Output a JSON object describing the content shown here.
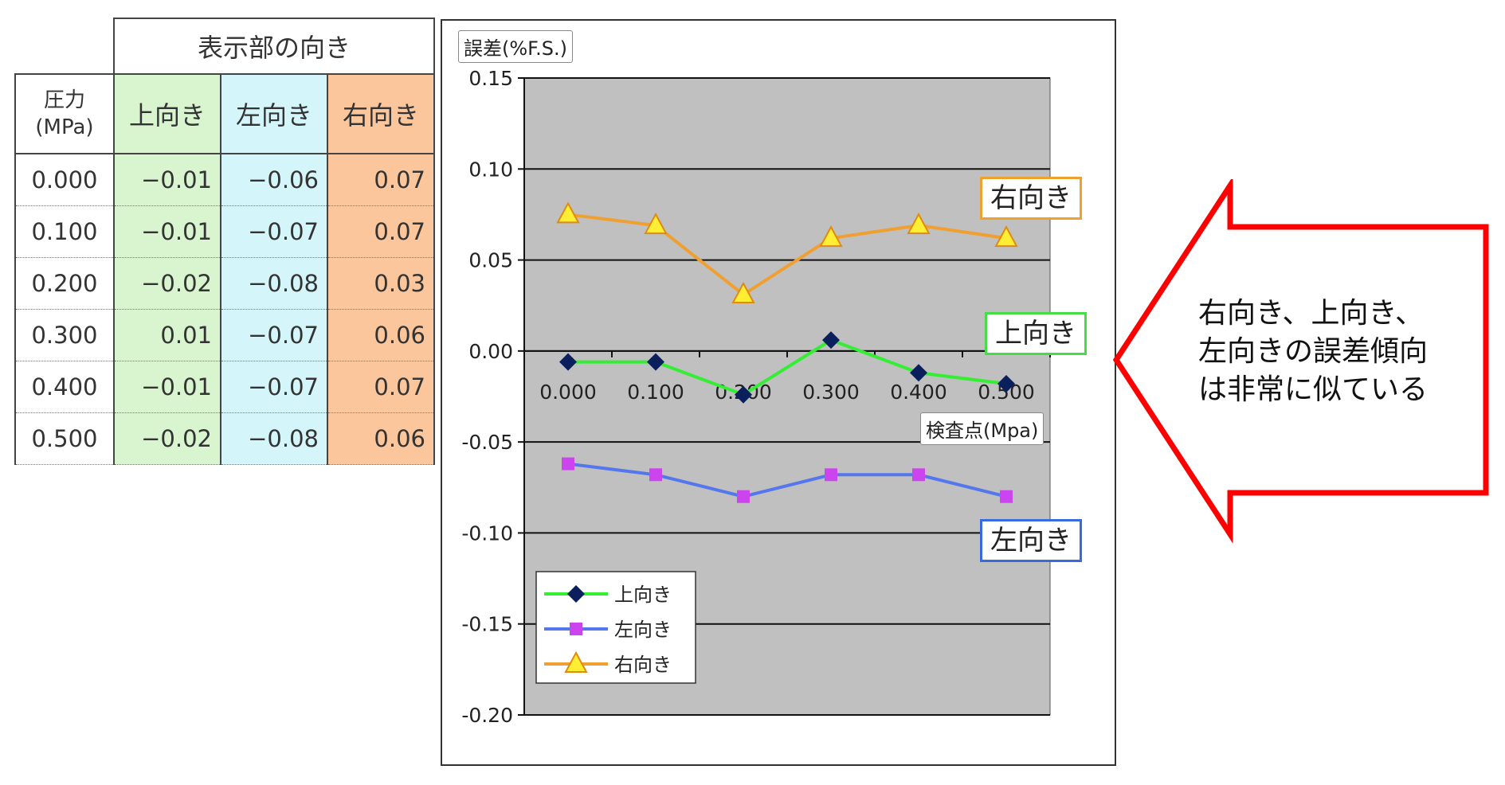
{
  "table": {
    "group_header": "表示部の向き",
    "pressure_header_line1": "圧力",
    "pressure_header_line2": "(MPa)",
    "columns": [
      "上向き",
      "左向き",
      "右向き"
    ],
    "rows": [
      {
        "p": "0.000",
        "up": "−0.01",
        "left": "−0.06",
        "right": "0.07"
      },
      {
        "p": "0.100",
        "up": "−0.01",
        "left": "−0.07",
        "right": "0.07"
      },
      {
        "p": "0.200",
        "up": "−0.02",
        "left": "−0.08",
        "right": "0.03"
      },
      {
        "p": "0.300",
        "up": "0.01",
        "left": "−0.07",
        "right": "0.06"
      },
      {
        "p": "0.400",
        "up": "−0.01",
        "left": "−0.07",
        "right": "0.07"
      },
      {
        "p": "0.500",
        "up": "−0.02",
        "left": "−0.08",
        "right": "0.06"
      }
    ]
  },
  "chart_data": {
    "type": "line",
    "ylabel": "誤差(%F.S.)",
    "xlabel": "検査点(Mpa)",
    "x": [
      "0.000",
      "0.100",
      "0.200",
      "0.300",
      "0.400",
      "0.500"
    ],
    "ylim": [
      -0.2,
      0.15
    ],
    "yticks": [
      "0.15",
      "0.10",
      "0.05",
      "0.00",
      "-0.05",
      "-0.10",
      "-0.15",
      "-0.20"
    ],
    "grid": true,
    "legend_position": "bottom-left",
    "series": [
      {
        "name": "上向き",
        "values": [
          -0.006,
          -0.006,
          -0.024,
          0.006,
          -0.012,
          -0.018
        ],
        "color": "#33ee33",
        "marker": "diamond",
        "marker_color": "#0a1f5c"
      },
      {
        "name": "左向き",
        "values": [
          -0.062,
          -0.068,
          -0.08,
          -0.068,
          -0.068,
          -0.08
        ],
        "color": "#5577ee",
        "marker": "square",
        "marker_color": "#cc44ee"
      },
      {
        "name": "右向き",
        "values": [
          0.075,
          0.069,
          0.031,
          0.062,
          0.069,
          0.062
        ],
        "color": "#f0a030",
        "marker": "triangle",
        "marker_color": "#ffee33"
      }
    ],
    "annotations": [
      "右向き",
      "上向き",
      "左向き"
    ]
  },
  "arrow_note": {
    "line1": "右向き、上向き、",
    "line2": "左向きの誤差傾向",
    "line3": "は非常に似ている"
  }
}
